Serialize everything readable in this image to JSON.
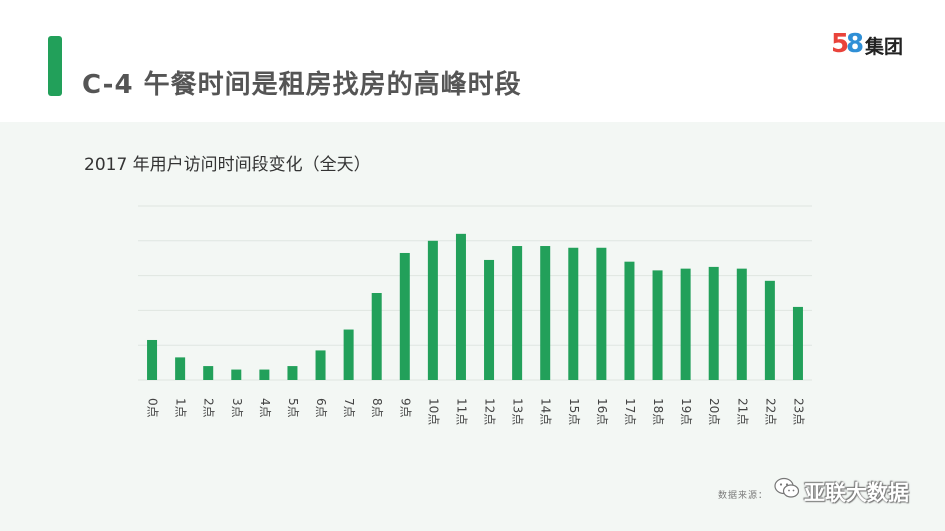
{
  "header": {
    "title": "C-4  午餐时间是租房找房的高峰时段",
    "logo_digits": [
      "5",
      "8"
    ],
    "logo_text": "集团"
  },
  "chart_data": {
    "type": "bar",
    "title": "2017 年用户访问时间段变化（全天）",
    "xlabel": "",
    "ylabel": "",
    "categories": [
      "0点",
      "1点",
      "2点",
      "3点",
      "4点",
      "5点",
      "6点",
      "7点",
      "8点",
      "9点",
      "10点",
      "11点",
      "12点",
      "13点",
      "14点",
      "15点",
      "16点",
      "17点",
      "18点",
      "19点",
      "20点",
      "21点",
      "22点",
      "23点"
    ],
    "values": [
      23,
      13,
      8,
      6,
      6,
      8,
      17,
      29,
      50,
      73,
      80,
      84,
      69,
      77,
      77,
      76,
      76,
      68,
      63,
      64,
      65,
      64,
      57,
      42
    ],
    "ylim": [
      0,
      100
    ],
    "grid": true,
    "bar_color": "#22a05a",
    "grid_color": "#dfe6e1"
  },
  "footer": {
    "source": "数据来源：",
    "watermark": "亚联大数据"
  }
}
